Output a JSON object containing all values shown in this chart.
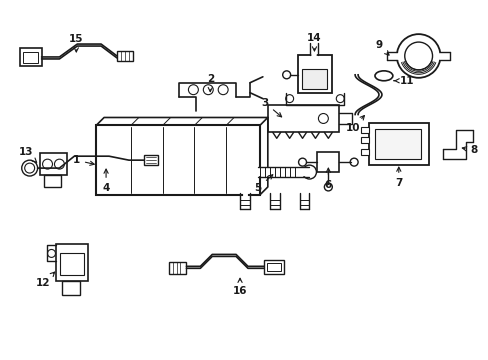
{
  "background_color": "#ffffff",
  "line_color": "#1a1a1a",
  "figsize": [
    4.89,
    3.6
  ],
  "dpi": 100,
  "xlim": [
    0,
    489
  ],
  "ylim": [
    0,
    360
  ]
}
